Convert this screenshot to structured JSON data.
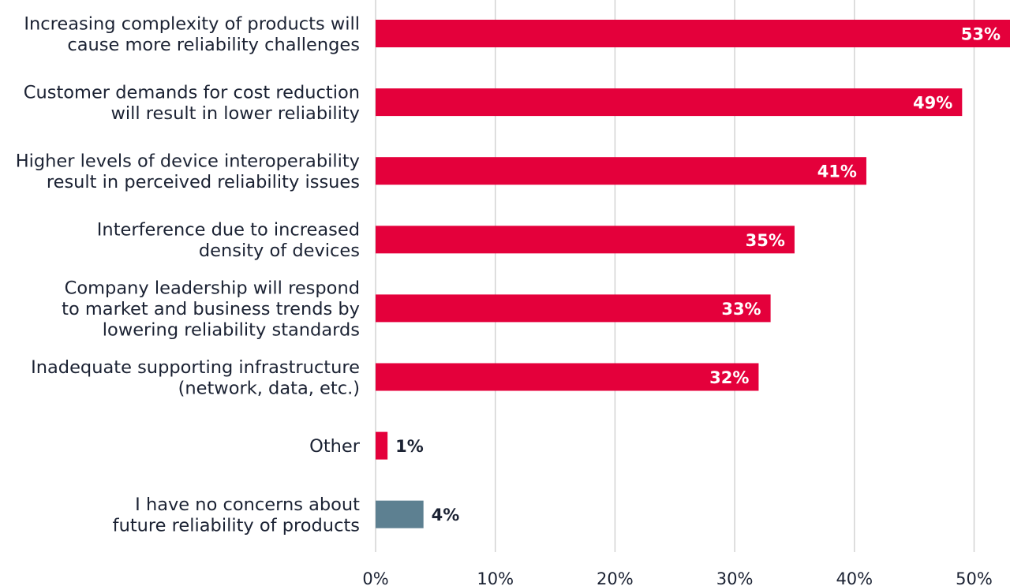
{
  "chart_data": {
    "type": "bar",
    "orientation": "horizontal",
    "categories": [
      "Increasing complexity of products will\ncause more reliability challenges",
      "Customer demands for cost reduction\nwill result in lower reliability",
      "Higher levels of device interoperability\nresult in perceived reliability issues",
      "Interference due to increased\ndensity of devices",
      "Company leadership will respond\nto market and business trends by\nlowering reliability standards",
      "Inadequate supporting infrastructure\n(network, data, etc.)",
      "Other",
      "I have no concerns about\nfuture reliability of products"
    ],
    "values": [
      53,
      49,
      41,
      35,
      33,
      32,
      1,
      4
    ],
    "value_labels": [
      "53%",
      "49%",
      "41%",
      "35%",
      "33%",
      "32%",
      "1%",
      "4%"
    ],
    "xlim": [
      0,
      53
    ],
    "xticks": [
      0,
      10,
      20,
      30,
      40,
      50
    ],
    "xtick_labels": [
      "0%",
      "10%",
      "20%",
      "30%",
      "40%",
      "50%"
    ],
    "grid": true,
    "title": "",
    "xlabel": "",
    "ylabel": "",
    "colors": {
      "bar": "#e4003b",
      "bar_no_concern": "#5d8091",
      "grid": "#d3d3d3",
      "text": "#1b2233",
      "label_inside": "#ffffff"
    }
  }
}
